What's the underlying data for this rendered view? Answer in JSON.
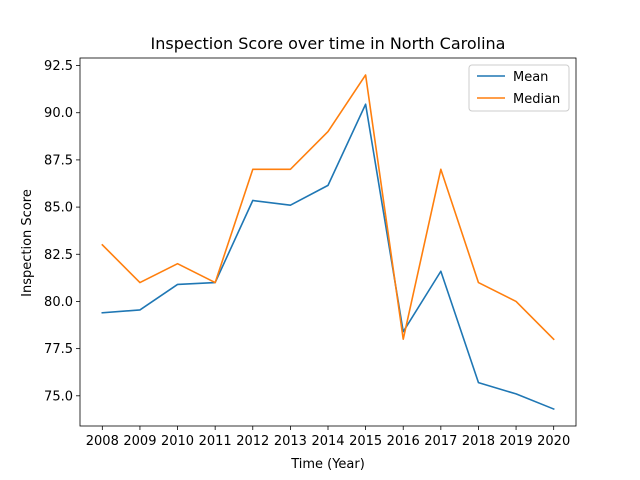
{
  "chart_data": {
    "type": "line",
    "title": "Inspection Score over time in North Carolina",
    "xlabel": "Time (Year)",
    "ylabel": "Inspection Score",
    "categories": [
      "2008",
      "2009",
      "2010",
      "2011",
      "2012",
      "2013",
      "2014",
      "2015",
      "2016",
      "2017",
      "2018",
      "2019",
      "2020"
    ],
    "yticks": [
      75.0,
      77.5,
      80.0,
      82.5,
      85.0,
      87.5,
      90.0,
      92.5
    ],
    "ytick_labels": [
      "75.0",
      "77.5",
      "80.0",
      "82.5",
      "85.0",
      "87.5",
      "90.0",
      "92.5"
    ],
    "ylim": [
      73.4,
      92.9
    ],
    "grid": false,
    "legend_position": "top-right",
    "series": [
      {
        "name": "Mean",
        "color": "#1f77b4",
        "values": [
          79.4,
          79.55,
          80.9,
          81.0,
          85.35,
          85.1,
          86.15,
          90.45,
          78.4,
          81.6,
          75.7,
          75.1,
          74.3
        ]
      },
      {
        "name": "Median",
        "color": "#ff7f0e",
        "values": [
          83.0,
          81.0,
          82.0,
          81.0,
          87.0,
          87.0,
          89.0,
          92.0,
          78.0,
          87.0,
          81.0,
          80.0,
          78.0
        ]
      }
    ]
  }
}
